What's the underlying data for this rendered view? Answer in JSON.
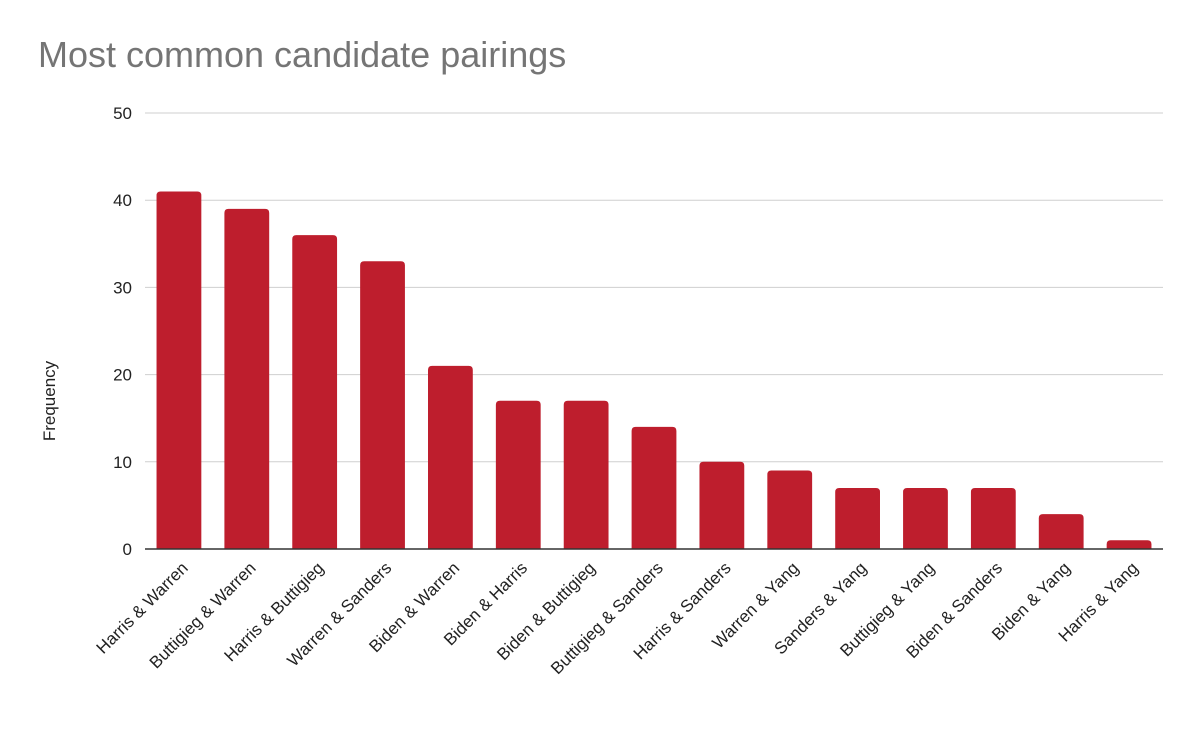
{
  "chart_data": {
    "type": "bar",
    "title": "Most common candidate pairings",
    "xlabel": "",
    "ylabel": "Frequency",
    "ylim": [
      0,
      50
    ],
    "yticks": [
      0,
      10,
      20,
      30,
      40,
      50
    ],
    "grid": true,
    "legend": "none",
    "bar_color": "#BE1E2D",
    "categories": [
      "Harris & Warren",
      "Buttigieg & Warren",
      "Harris & Buttigieg",
      "Warren & Sanders",
      "Biden & Warren",
      "Biden & Harris",
      "Biden & Buttigieg",
      "Buttigieg & Sanders",
      "Harris & Sanders",
      "Warren & Yang",
      "Sanders & Yang",
      "Buttigieg & Yang",
      "Biden & Sanders",
      "Biden & Yang",
      "Harris & Yang"
    ],
    "values": [
      41,
      39,
      36,
      33,
      21,
      17,
      17,
      14,
      10,
      9,
      7,
      7,
      7,
      4,
      1
    ]
  }
}
